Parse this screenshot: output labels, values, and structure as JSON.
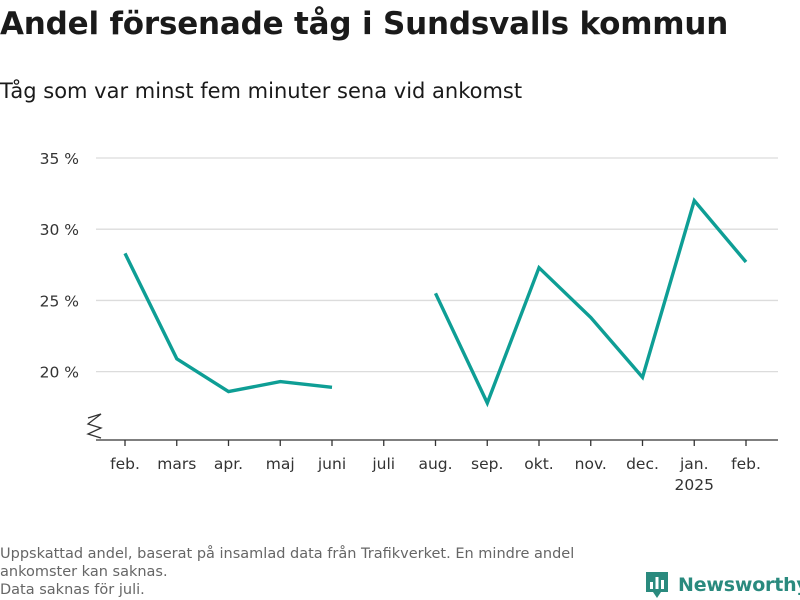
{
  "header": {
    "title": "Andel försenade tåg i Sundsvalls kommun",
    "subtitle": "Tåg som var minst fem minuter sena vid ankomst"
  },
  "footer": {
    "notes": [
      "Uppskattad andel, baserat på insamlad data från Trafikverket. En mindre andel",
      "ankomster kan saknas.",
      "Data saknas för juli."
    ],
    "brand": "Newsworthy",
    "brand_icon": "bar-chart-logo-icon",
    "brand_color": "#2a8a7e"
  },
  "chart_data": {
    "type": "line",
    "categories": [
      "feb.",
      "mars",
      "apr.",
      "maj",
      "juni",
      "juli",
      "aug.",
      "sep.",
      "okt.",
      "nov.",
      "dec.",
      "jan.",
      "feb."
    ],
    "category_sublabels": [
      "",
      "",
      "",
      "",
      "",
      "",
      "",
      "",
      "",
      "",
      "",
      "2025",
      ""
    ],
    "series": [
      {
        "values": [
          28.3,
          20.9,
          18.6,
          19.3,
          18.9,
          null,
          25.5,
          17.8,
          27.3,
          23.8,
          19.6,
          32.0,
          27.7
        ],
        "color": "#0e9e95"
      }
    ],
    "y_ticks": [
      20,
      25,
      30,
      35
    ],
    "y_tick_labels": [
      "20 %",
      "25 %",
      "30 %",
      "35 %"
    ],
    "ylim": [
      15.2,
      35
    ],
    "axis_break": true,
    "grid": true,
    "legend": "none"
  }
}
